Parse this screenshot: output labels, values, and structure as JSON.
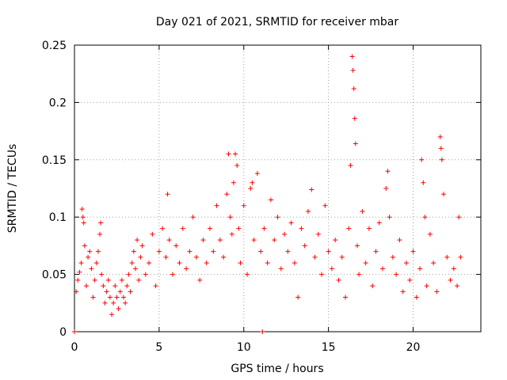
{
  "chart_data": {
    "type": "scatter",
    "title": "Day 021 of 2021, SRMTID for receiver mbar",
    "xlabel": "GPS time / hours",
    "ylabel": "SRMTID / TECUs",
    "xlim": [
      0,
      24
    ],
    "ylim": [
      0,
      0.25
    ],
    "xticks": [
      0,
      5,
      10,
      15,
      20
    ],
    "xtick_labels": [
      "0",
      "5",
      "10",
      "15",
      "20"
    ],
    "yticks": [
      0,
      0.05,
      0.1,
      0.15,
      0.2,
      0.25
    ],
    "ytick_labels": [
      "0",
      "0.05",
      "0.1",
      "0.15",
      "0.2",
      "0.25"
    ],
    "grid": true,
    "marker": "plus",
    "color": "#ff0000",
    "series": [
      {
        "name": "SRMTID",
        "points": [
          [
            0.0,
            0.0
          ],
          [
            0.1,
            0.035
          ],
          [
            0.2,
            0.045
          ],
          [
            0.3,
            0.052
          ],
          [
            0.4,
            0.06
          ],
          [
            0.45,
            0.107
          ],
          [
            0.5,
            0.1
          ],
          [
            0.55,
            0.095
          ],
          [
            0.6,
            0.075
          ],
          [
            0.7,
            0.04
          ],
          [
            0.8,
            0.065
          ],
          [
            0.9,
            0.07
          ],
          [
            1.0,
            0.055
          ],
          [
            1.1,
            0.03
          ],
          [
            1.2,
            0.045
          ],
          [
            1.3,
            0.06
          ],
          [
            1.4,
            0.07
          ],
          [
            1.5,
            0.085
          ],
          [
            1.55,
            0.095
          ],
          [
            1.6,
            0.05
          ],
          [
            1.7,
            0.04
          ],
          [
            1.8,
            0.025
          ],
          [
            1.9,
            0.035
          ],
          [
            2.0,
            0.045
          ],
          [
            2.1,
            0.03
          ],
          [
            2.2,
            0.015
          ],
          [
            2.3,
            0.025
          ],
          [
            2.4,
            0.04
          ],
          [
            2.5,
            0.03
          ],
          [
            2.6,
            0.02
          ],
          [
            2.7,
            0.035
          ],
          [
            2.8,
            0.045
          ],
          [
            2.9,
            0.03
          ],
          [
            3.0,
            0.025
          ],
          [
            3.1,
            0.04
          ],
          [
            3.2,
            0.05
          ],
          [
            3.3,
            0.035
          ],
          [
            3.4,
            0.06
          ],
          [
            3.5,
            0.07
          ],
          [
            3.6,
            0.055
          ],
          [
            3.7,
            0.08
          ],
          [
            3.8,
            0.045
          ],
          [
            3.9,
            0.065
          ],
          [
            4.0,
            0.075
          ],
          [
            4.2,
            0.05
          ],
          [
            4.4,
            0.06
          ],
          [
            4.6,
            0.085
          ],
          [
            4.8,
            0.04
          ],
          [
            5.0,
            0.07
          ],
          [
            5.2,
            0.09
          ],
          [
            5.4,
            0.065
          ],
          [
            5.5,
            0.12
          ],
          [
            5.6,
            0.08
          ],
          [
            5.8,
            0.05
          ],
          [
            6.0,
            0.075
          ],
          [
            6.2,
            0.06
          ],
          [
            6.4,
            0.09
          ],
          [
            6.6,
            0.055
          ],
          [
            6.8,
            0.07
          ],
          [
            7.0,
            0.1
          ],
          [
            7.2,
            0.065
          ],
          [
            7.4,
            0.045
          ],
          [
            7.6,
            0.08
          ],
          [
            7.8,
            0.06
          ],
          [
            8.0,
            0.09
          ],
          [
            8.2,
            0.07
          ],
          [
            8.4,
            0.11
          ],
          [
            8.6,
            0.08
          ],
          [
            8.8,
            0.065
          ],
          [
            9.0,
            0.12
          ],
          [
            9.1,
            0.155
          ],
          [
            9.2,
            0.1
          ],
          [
            9.3,
            0.085
          ],
          [
            9.4,
            0.13
          ],
          [
            9.5,
            0.155
          ],
          [
            9.6,
            0.145
          ],
          [
            9.7,
            0.09
          ],
          [
            9.8,
            0.06
          ],
          [
            10.0,
            0.11
          ],
          [
            10.2,
            0.05
          ],
          [
            10.4,
            0.125
          ],
          [
            10.5,
            0.13
          ],
          [
            10.6,
            0.08
          ],
          [
            10.8,
            0.138
          ],
          [
            11.0,
            0.07
          ],
          [
            11.1,
            0.0
          ],
          [
            11.2,
            0.09
          ],
          [
            11.4,
            0.06
          ],
          [
            11.6,
            0.115
          ],
          [
            11.8,
            0.08
          ],
          [
            12.0,
            0.1
          ],
          [
            12.2,
            0.055
          ],
          [
            12.4,
            0.085
          ],
          [
            12.6,
            0.07
          ],
          [
            12.8,
            0.095
          ],
          [
            13.0,
            0.06
          ],
          [
            13.2,
            0.03
          ],
          [
            13.4,
            0.09
          ],
          [
            13.6,
            0.075
          ],
          [
            13.8,
            0.105
          ],
          [
            14.0,
            0.124
          ],
          [
            14.2,
            0.065
          ],
          [
            14.4,
            0.085
          ],
          [
            14.6,
            0.05
          ],
          [
            14.8,
            0.11
          ],
          [
            15.0,
            0.07
          ],
          [
            15.2,
            0.055
          ],
          [
            15.4,
            0.08
          ],
          [
            15.6,
            0.045
          ],
          [
            15.8,
            0.065
          ],
          [
            16.0,
            0.03
          ],
          [
            16.2,
            0.09
          ],
          [
            16.3,
            0.145
          ],
          [
            16.4,
            0.24
          ],
          [
            16.45,
            0.228
          ],
          [
            16.5,
            0.212
          ],
          [
            16.55,
            0.186
          ],
          [
            16.6,
            0.164
          ],
          [
            16.7,
            0.075
          ],
          [
            16.8,
            0.05
          ],
          [
            17.0,
            0.105
          ],
          [
            17.2,
            0.06
          ],
          [
            17.4,
            0.09
          ],
          [
            17.6,
            0.04
          ],
          [
            17.8,
            0.07
          ],
          [
            18.0,
            0.095
          ],
          [
            18.2,
            0.055
          ],
          [
            18.4,
            0.125
          ],
          [
            18.5,
            0.14
          ],
          [
            18.6,
            0.1
          ],
          [
            18.8,
            0.065
          ],
          [
            19.0,
            0.05
          ],
          [
            19.2,
            0.08
          ],
          [
            19.4,
            0.035
          ],
          [
            19.6,
            0.06
          ],
          [
            19.8,
            0.045
          ],
          [
            20.0,
            0.07
          ],
          [
            20.2,
            0.03
          ],
          [
            20.4,
            0.055
          ],
          [
            20.5,
            0.15
          ],
          [
            20.6,
            0.13
          ],
          [
            20.7,
            0.1
          ],
          [
            20.8,
            0.04
          ],
          [
            21.0,
            0.085
          ],
          [
            21.2,
            0.06
          ],
          [
            21.4,
            0.035
          ],
          [
            21.6,
            0.17
          ],
          [
            21.65,
            0.16
          ],
          [
            21.7,
            0.15
          ],
          [
            21.8,
            0.12
          ],
          [
            22.0,
            0.065
          ],
          [
            22.2,
            0.045
          ],
          [
            22.4,
            0.055
          ],
          [
            22.6,
            0.04
          ],
          [
            22.7,
            0.1
          ],
          [
            22.8,
            0.065
          ]
        ]
      }
    ]
  }
}
